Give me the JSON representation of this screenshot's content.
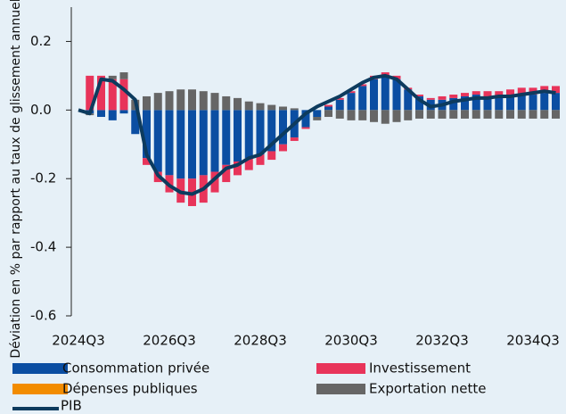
{
  "chart_data": {
    "type": "bar",
    "stacked": true,
    "y_label": "Déviation en % par rapport au taux de glissement annuel",
    "categories": [
      "2024Q3",
      null,
      null,
      null,
      null,
      null,
      null,
      null,
      "2026Q3",
      null,
      null,
      null,
      null,
      null,
      null,
      null,
      "2028Q3",
      null,
      null,
      null,
      null,
      null,
      null,
      null,
      "2030Q3",
      null,
      null,
      null,
      null,
      null,
      null,
      null,
      "2032Q3",
      null,
      null,
      null,
      null,
      null,
      null,
      null,
      "2034Q3",
      null,
      null
    ],
    "series": [
      {
        "name": "Consommation privée",
        "color": "#0b4ea2",
        "values": [
          0,
          -0.01,
          -0.02,
          -0.03,
          -0.01,
          -0.07,
          -0.14,
          -0.18,
          -0.19,
          -0.2,
          -0.2,
          -0.19,
          -0.18,
          -0.16,
          -0.15,
          -0.14,
          -0.13,
          -0.12,
          -0.1,
          -0.08,
          -0.05,
          -0.02,
          0.01,
          0.03,
          0.05,
          0.07,
          0.09,
          0.1,
          0.09,
          0.06,
          0.04,
          0.03,
          0.03,
          0.035,
          0.04,
          0.045,
          0.04,
          0.04,
          0.04,
          0.045,
          0.045,
          0.05,
          0.05
        ]
      },
      {
        "name": "Investissement",
        "color": "#e8345a",
        "values": [
          0,
          0.1,
          0.1,
          0.09,
          0.09,
          0,
          -0.02,
          -0.03,
          -0.05,
          -0.07,
          -0.08,
          -0.08,
          -0.06,
          -0.05,
          -0.04,
          -0.035,
          -0.03,
          -0.025,
          -0.02,
          -0.01,
          -0.005,
          0,
          0.005,
          0.005,
          0.005,
          0.005,
          0.01,
          0.01,
          0.01,
          0.005,
          0.005,
          0.005,
          0.01,
          0.01,
          0.01,
          0.01,
          0.015,
          0.015,
          0.02,
          0.02,
          0.02,
          0.02,
          0.02
        ]
      },
      {
        "name": "Dépenses publiques",
        "color": "#f28c00",
        "values": [
          0,
          0,
          0,
          0,
          0,
          0,
          0,
          0,
          0,
          0,
          0,
          0,
          0,
          0,
          0,
          0,
          0,
          0,
          0,
          0,
          0,
          0,
          0,
          0,
          0,
          0,
          0,
          0,
          0,
          0,
          0,
          0,
          0,
          0,
          0,
          0,
          0,
          0,
          0,
          0,
          0,
          0,
          0
        ]
      },
      {
        "name": "Exportation nette",
        "color": "#666666",
        "values": [
          0,
          -0.005,
          0,
          0.01,
          0.02,
          0.03,
          0.04,
          0.05,
          0.055,
          0.06,
          0.06,
          0.055,
          0.05,
          0.04,
          0.035,
          0.025,
          0.02,
          0.015,
          0.01,
          0.005,
          0,
          -0.01,
          -0.02,
          -0.025,
          -0.03,
          -0.03,
          -0.035,
          -0.04,
          -0.035,
          -0.03,
          -0.025,
          -0.025,
          -0.025,
          -0.025,
          -0.025,
          -0.025,
          -0.025,
          -0.025,
          -0.025,
          -0.025,
          -0.025,
          -0.025,
          -0.025
        ]
      }
    ],
    "line": {
      "name": "PIB",
      "color": "#0d3b5e",
      "values": [
        0,
        -0.01,
        0.09,
        0.085,
        0.06,
        0.03,
        -0.13,
        -0.19,
        -0.22,
        -0.24,
        -0.245,
        -0.23,
        -0.2,
        -0.17,
        -0.16,
        -0.14,
        -0.13,
        -0.1,
        -0.07,
        -0.04,
        -0.01,
        0.01,
        0.025,
        0.04,
        0.06,
        0.08,
        0.095,
        0.1,
        0.09,
        0.06,
        0.03,
        0.01,
        0.015,
        0.025,
        0.03,
        0.035,
        0.035,
        0.04,
        0.04,
        0.045,
        0.05,
        0.055,
        0.05
      ]
    },
    "ylim": [
      -0.6,
      0.3
    ],
    "yticks": [
      -0.6,
      -0.4,
      -0.2,
      {
        "value": 0,
        "label": "0.0"
      },
      0.2
    ]
  }
}
